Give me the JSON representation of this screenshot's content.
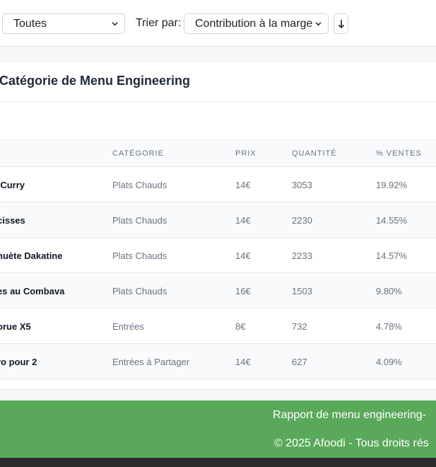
{
  "filters": {
    "category_value": "Toutes",
    "sort_label": "Trier par:",
    "sort_value": "Contribution à la marge",
    "direction_icon": "arrow-down-icon"
  },
  "card": {
    "title": "Catégorie de Menu Engineering"
  },
  "table": {
    "headers": [
      "Catégorie",
      "Prix",
      "Quantité",
      "% Ventes"
    ],
    "rows": [
      {
        "name": "-Curry",
        "category": "Plats Chauds",
        "price": "14€",
        "quantity": "3053",
        "pct": "19.92%"
      },
      {
        "name": "cisses",
        "category": "Plats Chauds",
        "price": "14€",
        "quantity": "2230",
        "pct": "14.55%"
      },
      {
        "name": "huète Dakatine",
        "category": "Plats Chauds",
        "price": "14€",
        "quantity": "2233",
        "pct": "14.57%"
      },
      {
        "name": "es au Combava",
        "category": "Plats Chauds",
        "price": "16€",
        "quantity": "1503",
        "pct": "9.80%"
      },
      {
        "name": "orue X5",
        "category": "Entrées",
        "price": "8€",
        "quantity": "732",
        "pct": "4.78%"
      },
      {
        "name": "ro pour 2",
        "category": "Entrées à Partager",
        "price": "14€",
        "quantity": "627",
        "pct": "4.09%"
      }
    ]
  },
  "footer": {
    "line1": "Rapport de menu engineering-",
    "line2": "© 2025 Afoodi - Tous droits rés"
  },
  "colors": {
    "footer_bg": "#5aa95a",
    "bottom_bar": "#2b2b2b"
  }
}
